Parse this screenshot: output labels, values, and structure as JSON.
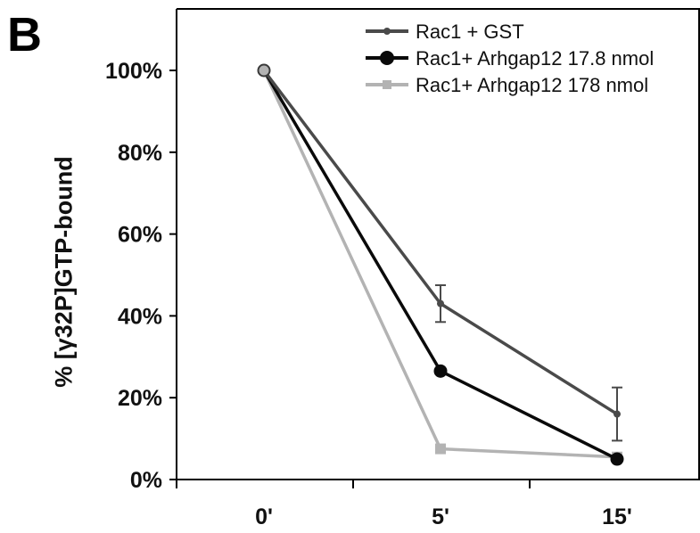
{
  "panel_label": "B",
  "chart_data": {
    "type": "line",
    "title": "",
    "xlabel": "",
    "ylabel": "% [γ32P]GTP-bound",
    "categories": [
      "0'",
      "5'",
      "15'"
    ],
    "ylim": [
      0,
      100
    ],
    "yticks": [
      "0%",
      "20%",
      "40%",
      "60%",
      "80%",
      "100%"
    ],
    "ytick_values": [
      0,
      20,
      40,
      60,
      80,
      100
    ],
    "legend_position": "top-right",
    "grid": false,
    "series": [
      {
        "name": "Rac1 + GST",
        "values": [
          100,
          43,
          16
        ],
        "errors": [
          0,
          4.5,
          6.5
        ],
        "color": "#4a4a4a",
        "marker": "small-dot"
      },
      {
        "name": "Rac1+ Arhgap12 17.8 nmol",
        "values": [
          100,
          26.5,
          5
        ],
        "errors": [
          0,
          0,
          0
        ],
        "color": "#0a0a0a",
        "marker": "circle"
      },
      {
        "name": "Rac1+ Arhgap12 178 nmol",
        "values": [
          100,
          7.5,
          5.5
        ],
        "errors": [
          0,
          0,
          0
        ],
        "color": "#b3b3b3",
        "marker": "square"
      }
    ]
  }
}
